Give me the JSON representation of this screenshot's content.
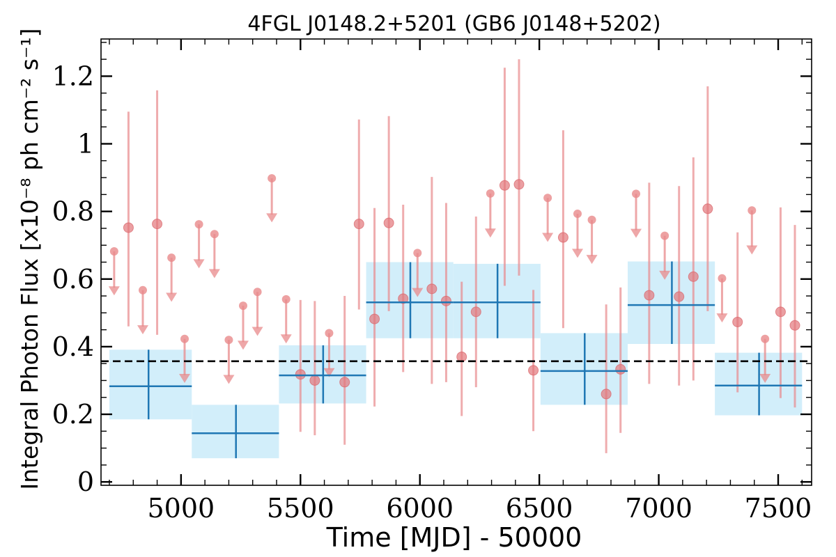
{
  "chart_data": {
    "type": "scatter",
    "title": "4FGL J0148.2+5201 (GB6 J0148+5202)",
    "xlabel": "Time [MJD] - 50000",
    "ylabel": "Integral Photon Flux [x10⁻⁸ ph cm⁻² s⁻¹]",
    "xlim": [
      4665,
      7640
    ],
    "ylim": [
      -0.01,
      1.31
    ],
    "xticks": [
      5000,
      5500,
      6000,
      6500,
      7000,
      7500
    ],
    "xtick_labels": [
      "5000",
      "5500",
      "6000",
      "6500",
      "7000",
      "7500"
    ],
    "yticks": [
      0,
      0.2,
      0.4,
      0.6,
      0.8,
      1,
      1.2
    ],
    "ytick_labels": [
      "0",
      "0.2",
      "0.4",
      "0.6",
      "0.8",
      "1",
      "1.2"
    ],
    "grid": false,
    "legend": "none",
    "mean_flux": 0.357,
    "colors": {
      "short_bins": "#e8898b",
      "long_bins": "#1f77b4",
      "long_bin_band": "#cdecfa",
      "mean_line": "#000000"
    },
    "long_bins": [
      {
        "x": 4864,
        "x_lo": 4700,
        "x_hi": 5045,
        "y": 0.283,
        "y_lo": 0.185,
        "y_hi": 0.391
      },
      {
        "x": 5230,
        "x_lo": 5045,
        "x_hi": 5410,
        "y": 0.144,
        "y_lo": 0.07,
        "y_hi": 0.228
      },
      {
        "x": 5595,
        "x_lo": 5410,
        "x_hi": 5775,
        "y": 0.315,
        "y_lo": 0.232,
        "y_hi": 0.404
      },
      {
        "x": 5960,
        "x_lo": 5775,
        "x_hi": 6140,
        "y": 0.531,
        "y_lo": 0.425,
        "y_hi": 0.65
      },
      {
        "x": 6325,
        "x_lo": 6140,
        "x_hi": 6505,
        "y": 0.531,
        "y_lo": 0.425,
        "y_hi": 0.645
      },
      {
        "x": 6690,
        "x_lo": 6505,
        "x_hi": 6870,
        "y": 0.328,
        "y_lo": 0.228,
        "y_hi": 0.44
      },
      {
        "x": 7055,
        "x_lo": 6870,
        "x_hi": 7235,
        "y": 0.523,
        "y_lo": 0.408,
        "y_hi": 0.652
      },
      {
        "x": 7420,
        "x_lo": 7235,
        "x_hi": 7600,
        "y": 0.285,
        "y_lo": 0.197,
        "y_hi": 0.382
      }
    ],
    "short_bins": [
      {
        "x": 4720,
        "y": 0.682,
        "upper_limit": true
      },
      {
        "x": 4780,
        "y": 0.752,
        "y_lo": 0.46,
        "y_hi": 1.095
      },
      {
        "x": 4840,
        "y": 0.567,
        "upper_limit": true
      },
      {
        "x": 4900,
        "y": 0.763,
        "y_lo": 0.435,
        "y_hi": 1.158
      },
      {
        "x": 4960,
        "y": 0.663,
        "upper_limit": true
      },
      {
        "x": 5015,
        "y": 0.423,
        "upper_limit": true
      },
      {
        "x": 5075,
        "y": 0.762,
        "upper_limit": true
      },
      {
        "x": 5140,
        "y": 0.733,
        "upper_limit": true
      },
      {
        "x": 5200,
        "y": 0.42,
        "upper_limit": true
      },
      {
        "x": 5260,
        "y": 0.521,
        "upper_limit": true
      },
      {
        "x": 5320,
        "y": 0.562,
        "upper_limit": true
      },
      {
        "x": 5380,
        "y": 0.898,
        "upper_limit": true
      },
      {
        "x": 5440,
        "y": 0.54,
        "upper_limit": true
      },
      {
        "x": 5500,
        "y": 0.318,
        "y_lo": 0.148,
        "y_hi": 0.538
      },
      {
        "x": 5560,
        "y": 0.3,
        "y_lo": 0.138,
        "y_hi": 0.535
      },
      {
        "x": 5620,
        "y": 0.44,
        "upper_limit": true
      },
      {
        "x": 5685,
        "y": 0.295,
        "y_lo": 0.11,
        "y_hi": 0.55
      },
      {
        "x": 5745,
        "y": 0.763,
        "y_lo": 0.51,
        "y_hi": 1.072
      },
      {
        "x": 5810,
        "y": 0.482,
        "y_lo": 0.223,
        "y_hi": 0.81
      },
      {
        "x": 5870,
        "y": 0.766,
        "y_lo": 0.505,
        "y_hi": 1.082
      },
      {
        "x": 5930,
        "y": 0.542,
        "y_lo": 0.325,
        "y_hi": 0.82
      },
      {
        "x": 5990,
        "y": 0.677,
        "upper_limit": true
      },
      {
        "x": 6050,
        "y": 0.571,
        "y_lo": 0.29,
        "y_hi": 0.902
      },
      {
        "x": 6110,
        "y": 0.535,
        "y_lo": 0.295,
        "y_hi": 0.825
      },
      {
        "x": 6175,
        "y": 0.37,
        "y_lo": 0.195,
        "y_hi": 0.592
      },
      {
        "x": 6235,
        "y": 0.503,
        "y_lo": 0.28,
        "y_hi": 0.785
      },
      {
        "x": 6295,
        "y": 0.853,
        "upper_limit": true
      },
      {
        "x": 6355,
        "y": 0.877,
        "y_lo": 0.58,
        "y_hi": 1.225
      },
      {
        "x": 6415,
        "y": 0.88,
        "y_lo": 0.61,
        "y_hi": 1.25
      },
      {
        "x": 6475,
        "y": 0.33,
        "y_lo": 0.15,
        "y_hi": 0.568
      },
      {
        "x": 6535,
        "y": 0.84,
        "upper_limit": true
      },
      {
        "x": 6600,
        "y": 0.723,
        "y_lo": 0.455,
        "y_hi": 1.04
      },
      {
        "x": 6660,
        "y": 0.793,
        "upper_limit": true
      },
      {
        "x": 6720,
        "y": 0.775,
        "upper_limit": true
      },
      {
        "x": 6780,
        "y": 0.26,
        "y_lo": 0.085,
        "y_hi": 0.525
      },
      {
        "x": 6840,
        "y": 0.333,
        "y_lo": 0.145,
        "y_hi": 0.575
      },
      {
        "x": 6905,
        "y": 0.852,
        "upper_limit": true
      },
      {
        "x": 6960,
        "y": 0.552,
        "y_lo": 0.29,
        "y_hi": 0.885
      },
      {
        "x": 7025,
        "y": 0.728,
        "upper_limit": true
      },
      {
        "x": 7085,
        "y": 0.548,
        "y_lo": 0.285,
        "y_hi": 0.875
      },
      {
        "x": 7145,
        "y": 0.607,
        "y_lo": 0.3,
        "y_hi": 0.96
      },
      {
        "x": 7205,
        "y": 0.808,
        "y_lo": 0.505,
        "y_hi": 1.17
      },
      {
        "x": 7265,
        "y": 0.602,
        "upper_limit": true
      },
      {
        "x": 7330,
        "y": 0.473,
        "y_lo": 0.265,
        "y_hi": 0.738
      },
      {
        "x": 7390,
        "y": 0.803,
        "upper_limit": true
      },
      {
        "x": 7445,
        "y": 0.423,
        "upper_limit": true
      },
      {
        "x": 7510,
        "y": 0.503,
        "y_lo": 0.248,
        "y_hi": 0.812
      },
      {
        "x": 7570,
        "y": 0.463,
        "y_lo": 0.22,
        "y_hi": 0.76
      }
    ]
  }
}
